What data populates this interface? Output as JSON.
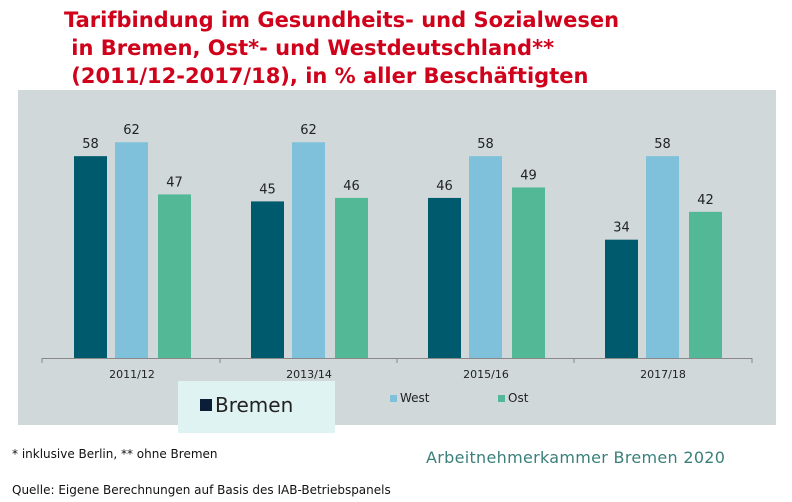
{
  "title_lines": [
    "Tarifbindung im Gesundheits- und Sozialwesen",
    " in Bremen, Ost*- und Westdeutschland**",
    " (2011/12-2017/18), in % aller Beschäftigten"
  ],
  "chart_data": {
    "type": "bar",
    "title": "Tarifbindung im Gesundheits- und Sozialwesen in Bremen, Ost*- und Westdeutschland** (2011/12-2017/18), in % aller Beschäftigten",
    "categories": [
      "2011/12",
      "2013/14",
      "2015/16",
      "2017/18"
    ],
    "series": [
      {
        "name": "Bremen",
        "color": "#005a6e",
        "values": [
          58,
          45,
          46,
          34
        ]
      },
      {
        "name": "West",
        "color": "#7fc1da",
        "values": [
          62,
          62,
          58,
          58
        ]
      },
      {
        "name": "Ost",
        "color": "#52b895",
        "values": [
          47,
          46,
          49,
          42
        ]
      }
    ],
    "ylim": [
      0,
      70
    ],
    "grid": false,
    "legend": "bottom",
    "data_labels": true
  },
  "footnotes": {
    "note": "* inklusive Berlin, ** ohne Bremen",
    "source": "Quelle: Eigene Berechnungen auf Basis des IAB-Betriebspanels",
    "credit": "Arbeitnehmerkammer Bremen 2020"
  }
}
